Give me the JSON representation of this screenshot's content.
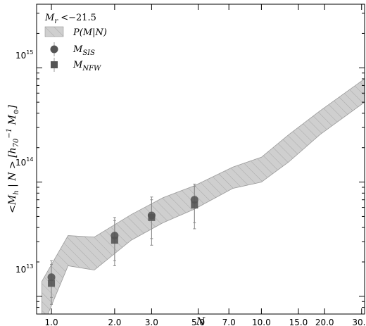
{
  "chart_data": {
    "type": "scatter",
    "title": "",
    "annotation": "M_r < -21.5",
    "xlabel": "N",
    "ylabel": "<M_h | N> [h_70^-1 M_⊙]",
    "xscale": "log",
    "yscale": "log",
    "xlim": [
      0.85,
      31
    ],
    "ylim": [
      7000000000000.0,
      3600000000000000.0
    ],
    "x_ticks": [
      "1.0",
      "2.0",
      "3.0",
      "5.0",
      "7.0",
      "10.0",
      "15.0",
      "20.0",
      "30.0"
    ],
    "y_ticks": [
      "10^13",
      "10^14",
      "10^15"
    ],
    "legend_position": "top-left",
    "legend": [
      "P(M|N)",
      "M_SIS",
      "M_NFW"
    ],
    "band": {
      "name": "P(M|N)",
      "x": [
        0.9,
        1.2,
        1.6,
        2.4,
        3.4,
        4.8,
        7.3,
        10.0,
        13.5,
        19.0,
        31.0
      ],
      "upper": [
        13500000000000.0,
        34000000000000.0,
        33000000000000.0,
        52000000000000.0,
        73000000000000.0,
        93000000000000.0,
        135000000000000.0,
        165000000000000.0,
        260000000000000.0,
        420000000000000.0,
        800000000000000.0
      ],
      "lower": [
        5200000000000.0,
        18500000000000.0,
        17000000000000.0,
        31000000000000.0,
        44000000000000.0,
        58000000000000.0,
        88000000000000.0,
        100000000000000.0,
        150000000000000.0,
        260000000000000.0,
        500000000000000.0
      ],
      "color": "#cccccc"
    },
    "series": [
      {
        "name": "M_SIS",
        "marker": "circle",
        "color": "#555555",
        "x": [
          1.0,
          2.0,
          3.0,
          4.8
        ],
        "y": [
          14700000000000.0,
          34000000000000.0,
          51000000000000.0,
          70000000000000.0
        ],
        "y_low": [
          9800000000000.0,
          20500000000000.0,
          32000000000000.0,
          44000000000000.0
        ],
        "y_high": [
          20500000000000.0,
          49000000000000.0,
          74000000000000.0,
          96000000000000.0
        ]
      },
      {
        "name": "M_NFW",
        "marker": "square",
        "color": "#555555",
        "x": [
          1.0,
          2.0,
          3.0,
          4.8
        ],
        "y": [
          13000000000000.0,
          31000000000000.0,
          49000000000000.0,
          63000000000000.0
        ],
        "y_low": [
          8500000000000.0,
          18500000000000.0,
          28000000000000.0,
          39000000000000.0
        ],
        "y_high": [
          19000000000000.0,
          46000000000000.0,
          70000000000000.0,
          92000000000000.0
        ]
      }
    ]
  }
}
